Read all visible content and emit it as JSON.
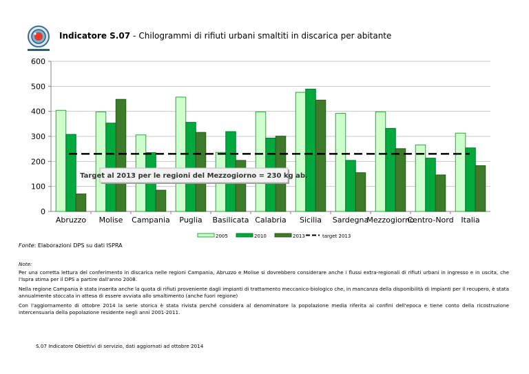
{
  "header": {
    "logo_icon": "obiettivi-di-servizio-logo",
    "indicator_label": "Indicatore S.07",
    "separator": "-",
    "subtitle": "Chilogrammi di rifiuti urbani smaltiti in discarica per abitante"
  },
  "chart_data": {
    "type": "bar",
    "title": "",
    "xlabel": "",
    "ylabel": "",
    "ylim": [
      0,
      600
    ],
    "yticks": [
      0,
      100,
      200,
      300,
      400,
      500,
      600
    ],
    "grid": true,
    "legend_position": "bottom",
    "categories": [
      "Abruzzo",
      "Molise",
      "Campania",
      "Puglia",
      "Basilicata",
      "Calabria",
      "Sicilia",
      "Sardegna",
      "Mezzogiorno",
      "Centro-Nord",
      "Italia"
    ],
    "series": [
      {
        "name": "2005",
        "color": "#ccffcc",
        "stroke": "#22aa33",
        "values": [
          404,
          398,
          306,
          457,
          236,
          398,
          476,
          392,
          398,
          266,
          313
        ]
      },
      {
        "name": "2010",
        "color": "#00a83d",
        "stroke": "#007a2c",
        "values": [
          308,
          353,
          235,
          356,
          319,
          293,
          489,
          204,
          332,
          213,
          254
        ]
      },
      {
        "name": "2013",
        "color": "#3d7a2a",
        "stroke": "#2b5a1e",
        "values": [
          70,
          448,
          85,
          316,
          204,
          301,
          445,
          155,
          251,
          146,
          183
        ]
      }
    ],
    "target": {
      "name": "target 2013",
      "value": 230,
      "color": "#000000"
    },
    "annotation": "Target al 2013 per le regioni del Mezzogiorno = 230 kg ab."
  },
  "source": {
    "label": "Fonte",
    "text": ": Elaborazioni DPS su dati ISPRA"
  },
  "notes": {
    "title": "Note:",
    "paragraphs": [
      "Per una corretta lettura del conferimento in discarica nelle regioni Campania, Abruzzo e Molise si dovrebbero considerare anche i flussi extra-regionali di rifiuti urbani in ingresso e in uscita, che l'Ispra stima per il DPS a partire dall'anno 2008.",
      "Nella regione Campania è stata inserita anche la quota di rifiuti proveniente dagli impianti di trattamento meccanico-biologico che, in mancanza della disponibilità di impianti per il recupero, è stata annualmente stoccata in attesa di essere avviata allo smaltimento (anche fuori regione)",
      "Con l'aggiornamento di ottobre 2014 la serie storica è stata rivista perché considera al denominatore la popolazione media riferita ai confini dell'epoca e tiene conto della ricostruzione intercensuaria della popolazione residente negli anni 2001-2011."
    ]
  },
  "footer": {
    "text": "S.07 Indicatore Obiettivi di servizio, dati aggiornati ad ottobre 2014"
  }
}
